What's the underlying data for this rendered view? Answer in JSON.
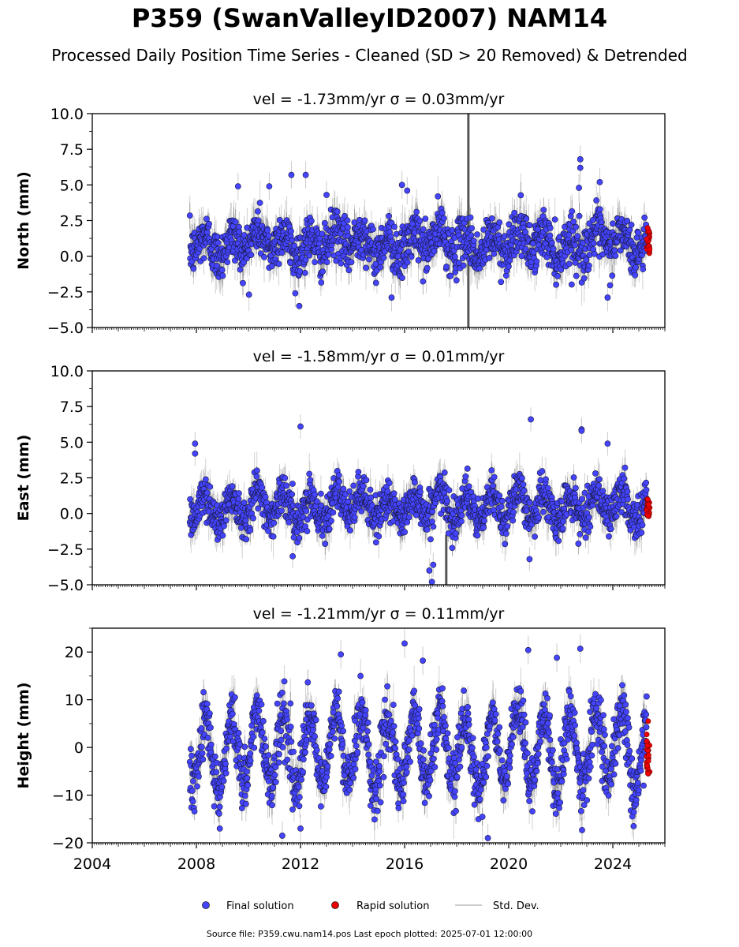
{
  "title": "P359 (SwanValleyID2007) NAM14",
  "subtitle": "Processed Daily Position Time Series - Cleaned (SD > 20 Removed) & Detrended",
  "footer": {
    "source_label": "Source file: P359.cwu.nam14.pos  Last epoch plotted: 2025-07-01 12:00:00"
  },
  "legend": {
    "items": [
      {
        "label": "Final solution",
        "color": "#4444ff"
      },
      {
        "label": "Rapid solution",
        "color": "#ee0000"
      },
      {
        "label": "Std. Dev.",
        "color": "#cccccc"
      }
    ]
  },
  "chart_data": [
    {
      "type": "scatter",
      "title": "vel = -1.73mm/yr   σ = 0.03mm/yr",
      "ylabel": "North (mm)",
      "xlim": [
        2004.0,
        2026.0
      ],
      "ylim": [
        -5.0,
        10.0
      ],
      "yticks": [
        -5.0,
        -2.5,
        0.0,
        2.5,
        5.0,
        7.5,
        10.0
      ],
      "ytick_labels": [
        "−5.0",
        "−2.5",
        "0.0",
        "2.5",
        "5.0",
        "7.5",
        "10.0"
      ],
      "series": [
        {
          "name": "Final solution",
          "start": 2007.75,
          "end": 2025.3,
          "mean": 0.9,
          "seasonal_amp": 0.7,
          "noise_sd": 0.85,
          "err_sd": 1.6,
          "outliers": [
            [
              2011.65,
              5.7
            ],
            [
              2012.2,
              5.7
            ],
            [
              2010.8,
              4.9
            ],
            [
              2009.6,
              4.9
            ],
            [
              2015.9,
              5.0
            ],
            [
              2022.75,
              6.8
            ],
            [
              2022.75,
              6.2
            ],
            [
              2022.7,
              4.8
            ],
            [
              2023.5,
              5.2
            ],
            [
              2016.1,
              4.6
            ],
            [
              2013.0,
              4.3
            ],
            [
              2023.8,
              -2.9
            ],
            [
              2015.5,
              -2.9
            ],
            [
              2011.8,
              -2.6
            ]
          ]
        },
        {
          "name": "Rapid solution",
          "start": 2025.3,
          "end": 2025.42,
          "mean": 1.1,
          "spread": 0.9
        }
      ],
      "spike": {
        "x": 2018.45,
        "lo": -5.0,
        "hi": 10.0
      }
    },
    {
      "type": "scatter",
      "title": "vel = -1.58mm/yr   σ = 0.01mm/yr",
      "ylabel": "East (mm)",
      "xlim": [
        2004.0,
        2026.0
      ],
      "ylim": [
        -5.0,
        10.0
      ],
      "yticks": [
        -5.0,
        -2.5,
        0.0,
        2.5,
        5.0,
        7.5,
        10.0
      ],
      "ytick_labels": [
        "−5.0",
        "−2.5",
        "0.0",
        "2.5",
        "5.0",
        "7.5",
        "10.0"
      ],
      "series": [
        {
          "name": "Final solution",
          "start": 2007.75,
          "end": 2025.3,
          "mean": 0.5,
          "seasonal_amp": 0.9,
          "noise_sd": 0.7,
          "err_sd": 1.4,
          "outliers": [
            [
              2012.0,
              6.1
            ],
            [
              2020.85,
              6.6
            ],
            [
              2022.8,
              5.9
            ],
            [
              2022.8,
              5.8
            ],
            [
              2023.8,
              4.9
            ],
            [
              2007.95,
              4.9
            ],
            [
              2007.95,
              4.2
            ],
            [
              2017.05,
              -4.8
            ],
            [
              2016.95,
              -4.0
            ],
            [
              2020.8,
              -3.2
            ],
            [
              2011.7,
              -3.0
            ],
            [
              2017.1,
              -3.6
            ]
          ]
        },
        {
          "name": "Rapid solution",
          "start": 2025.3,
          "end": 2025.42,
          "mean": 0.4,
          "spread": 0.7
        }
      ],
      "spike": {
        "x": 2017.6,
        "lo": -5.0,
        "hi": -1.5
      }
    },
    {
      "type": "scatter",
      "title": "vel = -1.21mm/yr   σ = 0.11mm/yr",
      "ylabel": "Height (mm)",
      "xlim": [
        2004.0,
        2026.0
      ],
      "ylim": [
        -20.0,
        25.0
      ],
      "yticks": [
        -20,
        -10,
        0,
        10,
        20
      ],
      "ytick_labels": [
        "−20",
        "−10",
        "0",
        "10",
        "20"
      ],
      "xticks": [
        2004,
        2008,
        2012,
        2016,
        2020,
        2024
      ],
      "xtick_labels": [
        "2004",
        "2008",
        "2012",
        "2016",
        "2020",
        "2024"
      ],
      "series": [
        {
          "name": "Final solution",
          "start": 2007.75,
          "end": 2025.3,
          "mean": -0.5,
          "seasonal_amp": 7.5,
          "noise_sd": 3.0,
          "err_sd": 5.0,
          "outliers": [
            [
              2016.0,
              21.8
            ],
            [
              2022.75,
              20.7
            ],
            [
              2020.75,
              20.4
            ],
            [
              2013.55,
              19.5
            ],
            [
              2021.85,
              18.8
            ],
            [
              2016.7,
              18.2
            ],
            [
              2019.2,
              -19.0
            ],
            [
              2011.3,
              -18.5
            ],
            [
              2012.0,
              -17.0
            ],
            [
              2024.8,
              -16.5
            ],
            [
              2008.9,
              -17.0
            ]
          ]
        },
        {
          "name": "Rapid solution",
          "start": 2025.3,
          "end": 2025.42,
          "mean": -1.5,
          "spread": 4.5,
          "max": 5.5,
          "min": -5.5
        }
      ]
    }
  ]
}
